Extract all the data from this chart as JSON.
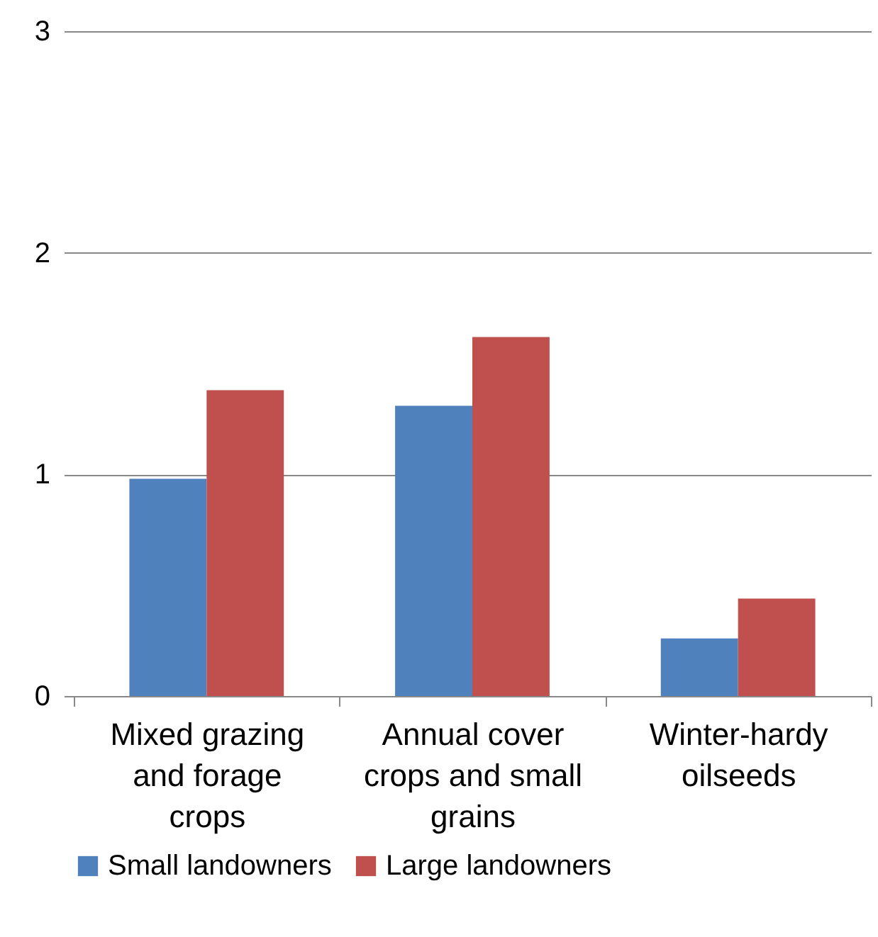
{
  "chart_data": {
    "type": "bar",
    "categories": [
      "Mixed grazing and forage crops",
      "Annual cover crops and small grains",
      "Winter-hardy oilseeds"
    ],
    "series": [
      {
        "name": "Small landowners",
        "color": "#4f81bd",
        "values": [
          0.98,
          1.31,
          0.26
        ]
      },
      {
        "name": "Large landowners",
        "color": "#c0504d",
        "values": [
          1.38,
          1.62,
          0.44
        ]
      }
    ],
    "ylim": [
      0,
      3
    ],
    "yticks": [
      0,
      1,
      2,
      3
    ],
    "grid": "y",
    "legend": "bottom"
  }
}
